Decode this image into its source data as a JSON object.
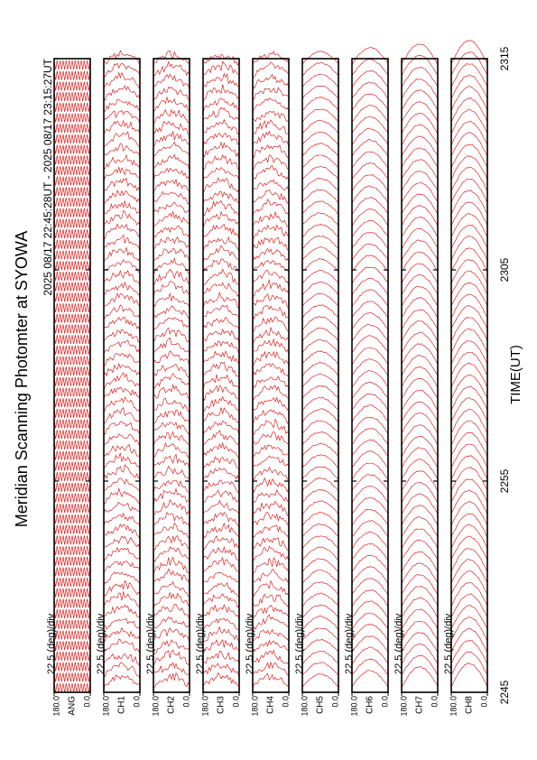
{
  "chart_data": {
    "type": "scan-panels",
    "title": "Meridian Scanning Photomter at SYOWA",
    "subtitle": "2025 08/17 22:45:28UT - 2025 08/17 23:15:27UT",
    "x_label": "TIME(UT)",
    "xlim": [
      0,
      30
    ],
    "xticks": [
      {
        "value": 0,
        "label": "2245"
      },
      {
        "value": 10,
        "label": "2255"
      },
      {
        "value": 20,
        "label": "2305"
      },
      {
        "value": 30,
        "label": "2315"
      }
    ],
    "ylim": [
      0,
      180
    ],
    "yticks": [
      {
        "value": 180,
        "label": "180.0"
      },
      {
        "value": 0,
        "label": "0.0"
      }
    ],
    "color": "#e00000",
    "panels": [
      {
        "label": "ANG",
        "scale": "22.5 (deg)/div"
      },
      {
        "label": "CH1",
        "scale": "22.5 (deg)/div"
      },
      {
        "label": "CH2",
        "scale": "22.5 (deg)/div"
      },
      {
        "label": "CH3",
        "scale": "22.5 (deg)/div"
      },
      {
        "label": "CH4",
        "scale": "22.5 (deg)/div"
      },
      {
        "label": "CH5",
        "scale": "22.5 (deg)/div"
      },
      {
        "label": "CH6",
        "scale": "22.5 (deg)/div"
      },
      {
        "label": "CH7",
        "scale": "22.5 (deg)/div"
      },
      {
        "label": "CH8",
        "scale": "22.5 (deg)/div"
      }
    ]
  }
}
